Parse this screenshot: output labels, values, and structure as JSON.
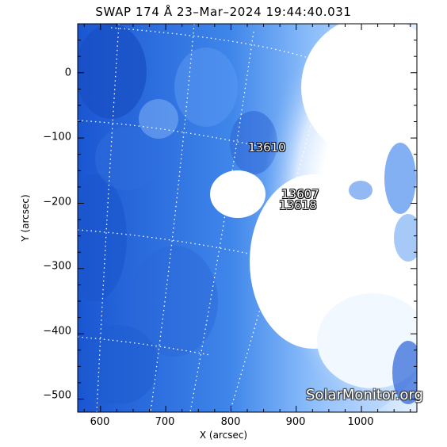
{
  "title": "SWAP 174 Å 23–Mar–2024 19:44:40.031",
  "watermark": "SolarMonitor.org",
  "axes": {
    "xlabel": "X (arcsec)",
    "ylabel": "Y (arcsec)",
    "xticks": [
      "600",
      "700",
      "800",
      "900",
      "1000"
    ],
    "yticks": [
      "0",
      "−100",
      "−200",
      "−300",
      "−400",
      "−500"
    ],
    "xlim": [
      565,
      1085
    ],
    "ylim": [
      -520,
      75
    ]
  },
  "active_regions": [
    {
      "id": "13610"
    },
    {
      "id": "13607"
    },
    {
      "id": "13618"
    }
  ],
  "colors": {
    "image_dark": "#1449c7",
    "image_mid": "#4d8ef0",
    "image_light": "#cfe3ff",
    "flare_white": "#ffffff",
    "grid": "#ffffff"
  }
}
